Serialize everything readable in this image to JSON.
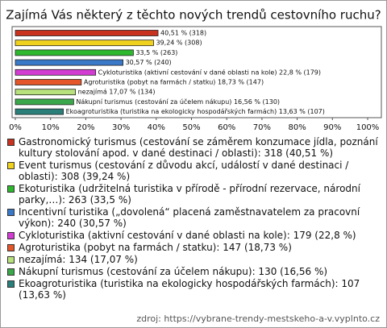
{
  "chart_data": {
    "type": "hbar",
    "title": "Zajímá Vás některý z těchto nových trendů cestovního ruchu?",
    "categories": [
      "Gastronomický turismus (cestování se záměrem konzumace jídla, poznání kultury stolování apod. v dané destinaci / oblasti): 318 (40,51 %)",
      "Event turismus (cestování z důvodu akcí, událostí v dané destinaci / oblasti): 308 (39,24 %)",
      "Ekoturistika (udržitelná turistika v přírodě - přírodní rezervace, národní parky,…): 263 (33,5 %)",
      "Incentivní turistika („dovolená“ placená zaměstnavatelem za pracovní výkon): 240 (30,57 %)",
      "Cykloturistika (aktivní cestování v dané oblasti na kole): 179 (22,8 %)",
      "Agroturistika (pobyt na farmách / statku): 147 (18,73 %)",
      "nezajímá: 134 (17,07 %)",
      "Nákupní turismus (cestování za účelem nákupu): 130 (16,56 %)",
      "Ekoagroturistika (turistika na ekologicky hospodářských farmách): 107 (13,63 %)"
    ],
    "values": [
      40.51,
      39.24,
      33.5,
      30.57,
      22.8,
      18.73,
      17.07,
      16.56,
      13.63
    ],
    "counts": [
      318,
      308,
      263,
      240,
      179,
      147,
      134,
      130,
      107
    ],
    "value_labels": [
      "40,51 % (318)",
      "39,24 % (308)",
      "33,5 % (263)",
      "30,57 % (240)",
      "Cykloturistika (aktivní cestování v dané oblasti na kole) 22,8 % (179)",
      "Agroturistika (pobyt na farmách / statku) 18,73 % (147)",
      "nezajímá 17,07 % (134)",
      "Nákupní turismus (cestování za účelem nákupu) 16,56 % (130)",
      "Ekoagroturistika (turistika na ekologicky hospodářských farmách) 13,63 % (107)"
    ],
    "colors": [
      "#c8321e",
      "#f0d21e",
      "#2eb82e",
      "#3a78c8",
      "#d23cd2",
      "#e4552a",
      "#b8e07c",
      "#3aa84a",
      "#2a7f7a"
    ],
    "xlim": [
      0,
      100
    ],
    "xticks": [
      {
        "value": 0,
        "label": "0%"
      },
      {
        "value": 10,
        "label": "10%"
      },
      {
        "value": 20,
        "label": "20%"
      },
      {
        "value": 30,
        "label": "30%"
      },
      {
        "value": 40,
        "label": "40%"
      },
      {
        "value": 50,
        "label": "50%"
      },
      {
        "value": 60,
        "label": "60%"
      },
      {
        "value": 70,
        "label": "70%"
      },
      {
        "value": 80,
        "label": "80%"
      },
      {
        "value": 90,
        "label": "90%"
      },
      {
        "value": 100,
        "label": "100%"
      }
    ],
    "source": "zdroj: https://vybrane-trendy-mestskeho-a-v.vyplnto.cz"
  }
}
